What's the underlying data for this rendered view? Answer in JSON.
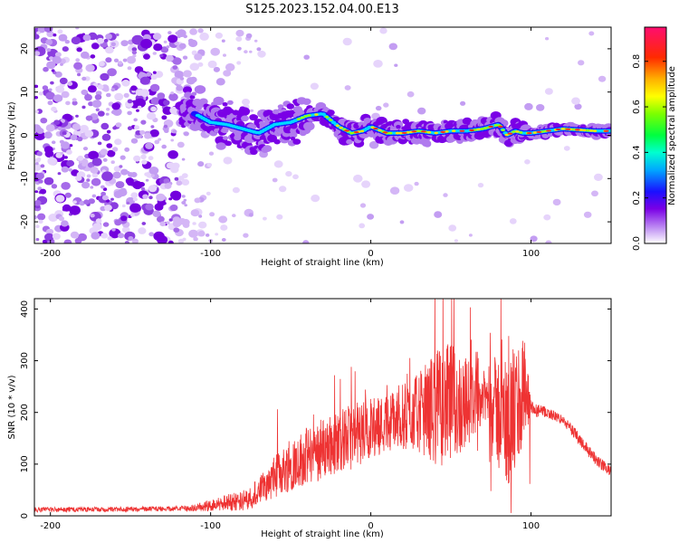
{
  "figure": {
    "title": "S125.2023.152.04.00.E13"
  },
  "chart_data": [
    {
      "type": "heatmap",
      "xlabel": "Height of straight line (km)",
      "ylabel": "Frequency (Hz)",
      "xlim": [
        -210,
        150
      ],
      "ylim": [
        -25,
        25
      ],
      "x_ticks": [
        -200,
        -100,
        0,
        100
      ],
      "y_ticks": [
        -20,
        -10,
        0,
        10,
        20
      ],
      "colorbar": {
        "label": "Normalized spectral amplitude",
        "range": [
          0,
          0.95
        ],
        "ticks": [
          0.0,
          0.2,
          0.4,
          0.6,
          0.8
        ]
      },
      "ridge": {
        "x": [
          -115,
          -100,
          -90,
          -80,
          -70,
          -60,
          -50,
          -40,
          -30,
          -20,
          -12,
          -5,
          0,
          10,
          20,
          30,
          40,
          50,
          60,
          70,
          80,
          85,
          90,
          95,
          100,
          120,
          140,
          150
        ],
        "y": [
          6,
          3,
          2.5,
          1.5,
          0.5,
          2.5,
          3,
          4.5,
          5,
          2,
          0.5,
          1,
          2,
          0.5,
          0.5,
          1,
          0.5,
          1,
          1,
          1.5,
          2.5,
          0,
          1,
          0.5,
          0.5,
          1.5,
          1,
          1
        ]
      },
      "grid": false
    },
    {
      "type": "line",
      "xlabel": "Height of straight line (km)",
      "ylabel": "SNR (10 * v/v)",
      "xlim": [
        -210,
        150
      ],
      "ylim": [
        0,
        420
      ],
      "x_ticks": [
        -200,
        -100,
        0,
        100
      ],
      "y_ticks": [
        0,
        100,
        200,
        300,
        400
      ],
      "grid": false,
      "series": [
        {
          "color": "#ee3333",
          "x": [
            -210,
            -180,
            -150,
            -120,
            -110,
            -100,
            -90,
            -80,
            -70,
            -60,
            -50,
            -40,
            -30,
            -20,
            -10,
            0,
            10,
            20,
            30,
            40,
            50,
            60,
            70,
            75,
            80,
            85,
            90,
            95,
            100,
            110,
            120,
            130,
            140,
            150
          ],
          "y": [
            12,
            12,
            13,
            14,
            15,
            20,
            25,
            30,
            45,
            75,
            100,
            115,
            130,
            145,
            155,
            170,
            180,
            190,
            200,
            210,
            215,
            220,
            230,
            225,
            200,
            180,
            200,
            230,
            205,
            200,
            185,
            150,
            110,
            85
          ],
          "spread": [
            6,
            6,
            6,
            6,
            8,
            15,
            20,
            25,
            35,
            50,
            65,
            70,
            75,
            75,
            80,
            75,
            70,
            80,
            95,
            140,
            150,
            110,
            60,
            90,
            150,
            170,
            160,
            180,
            20,
            12,
            12,
            15,
            15,
            12
          ]
        }
      ]
    }
  ]
}
